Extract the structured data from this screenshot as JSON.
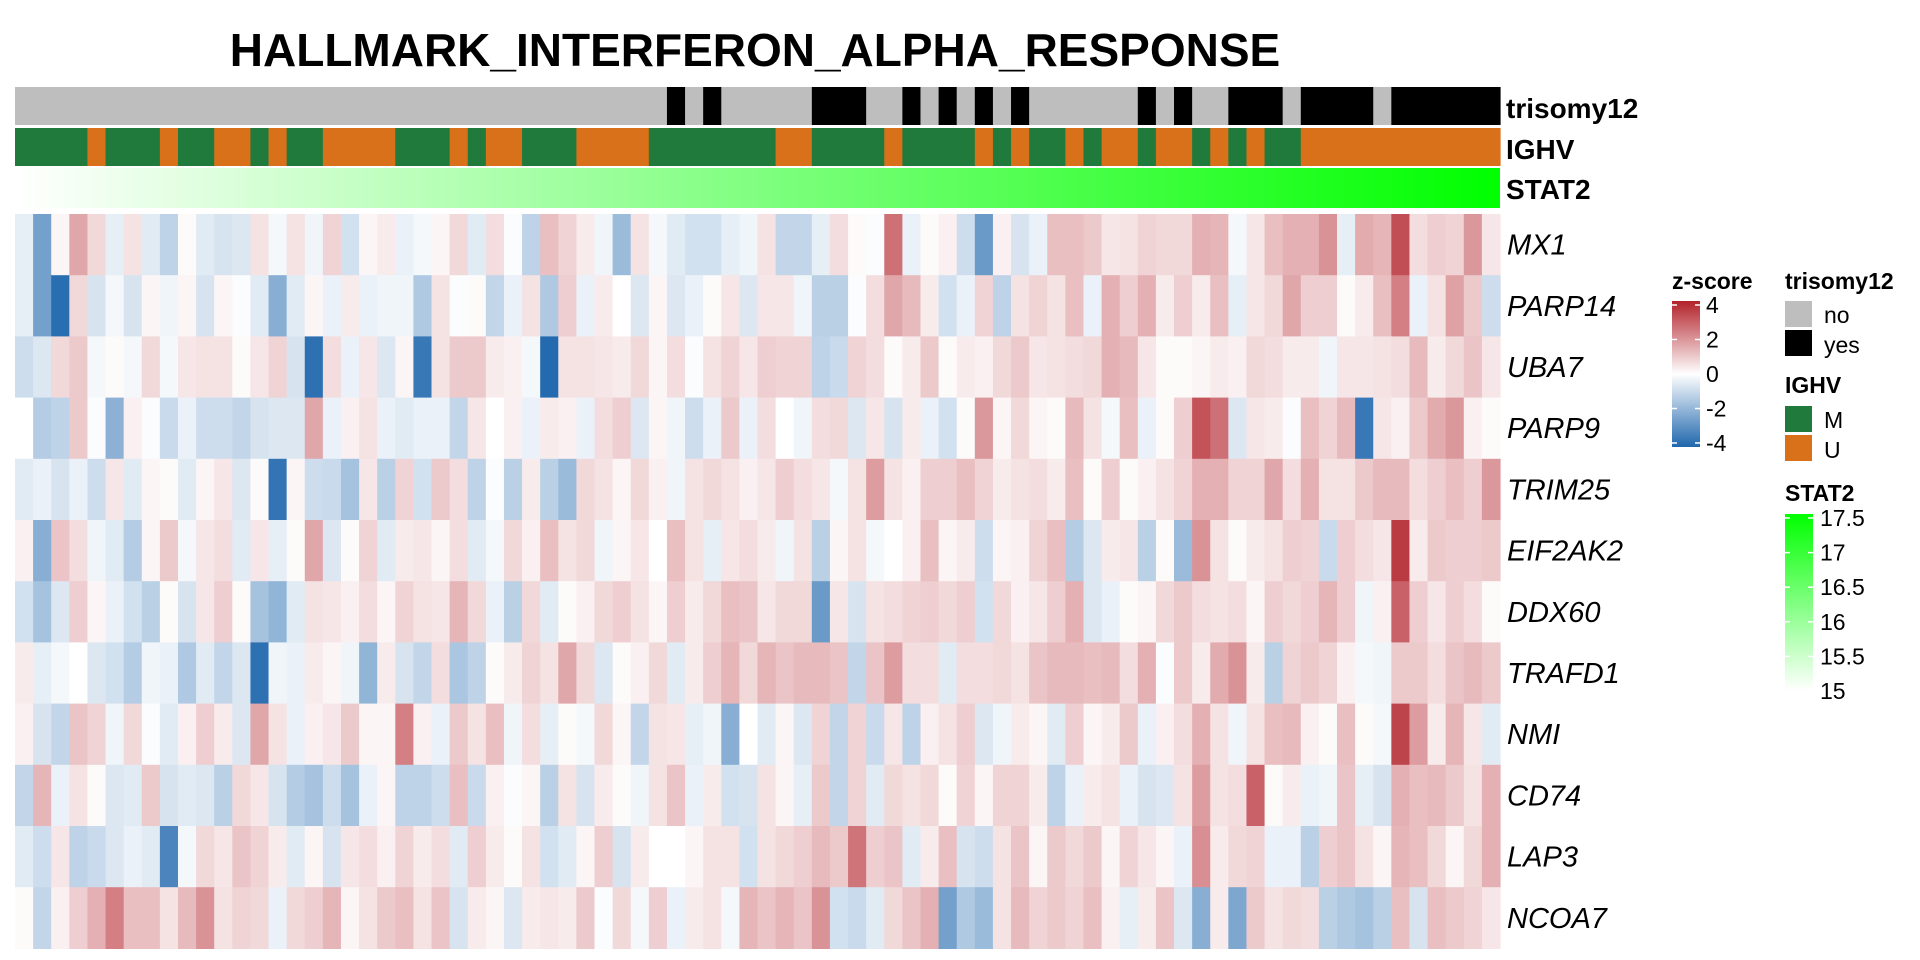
{
  "chart_data": {
    "type": "heatmap",
    "title": "HALLMARK_INTERFERON_ALPHA_RESPONSE",
    "genes": [
      "MX1",
      "PARP14",
      "UBA7",
      "PARP9",
      "TRIM25",
      "EIF2AK2",
      "DDX60",
      "TRAFD1",
      "NMI",
      "CD74",
      "LAP3",
      "NCOA7"
    ],
    "n_samples": 82,
    "annotations": {
      "trisomy12": {
        "label": "trisomy12",
        "values": [
          "no",
          "no",
          "no",
          "no",
          "no",
          "no",
          "no",
          "no",
          "no",
          "no",
          "no",
          "no",
          "no",
          "no",
          "no",
          "no",
          "no",
          "no",
          "no",
          "no",
          "no",
          "no",
          "no",
          "no",
          "no",
          "no",
          "no",
          "no",
          "no",
          "no",
          "no",
          "no",
          "no",
          "no",
          "no",
          "no",
          "yes",
          "no",
          "yes",
          "no",
          "no",
          "no",
          "no",
          "no",
          "yes",
          "yes",
          "yes",
          "no",
          "no",
          "yes",
          "no",
          "yes",
          "no",
          "yes",
          "no",
          "yes",
          "no",
          "no",
          "no",
          "no",
          "no",
          "no",
          "yes",
          "no",
          "yes",
          "no",
          "no",
          "yes",
          "yes",
          "yes",
          "no",
          "yes",
          "yes",
          "yes",
          "yes",
          "no",
          "yes",
          "yes",
          "yes",
          "yes",
          "yes",
          "yes"
        ]
      },
      "IGHV": {
        "label": "IGHV",
        "values": [
          "M",
          "M",
          "M",
          "M",
          "U",
          "M",
          "M",
          "M",
          "U",
          "M",
          "M",
          "U",
          "U",
          "M",
          "U",
          "M",
          "M",
          "U",
          "U",
          "U",
          "U",
          "M",
          "M",
          "M",
          "U",
          "M",
          "U",
          "U",
          "M",
          "M",
          "M",
          "U",
          "U",
          "U",
          "U",
          "M",
          "M",
          "M",
          "M",
          "M",
          "M",
          "M",
          "U",
          "U",
          "M",
          "M",
          "M",
          "M",
          "U",
          "M",
          "M",
          "M",
          "M",
          "U",
          "M",
          "U",
          "M",
          "M",
          "U",
          "M",
          "U",
          "U",
          "M",
          "U",
          "U",
          "M",
          "U",
          "M",
          "U",
          "M",
          "M",
          "U",
          "U",
          "U",
          "U",
          "U",
          "U",
          "U",
          "U",
          "U",
          "U",
          "U"
        ]
      },
      "STAT2": {
        "label": "STAT2",
        "range": [
          14.9,
          17.6
        ]
      }
    },
    "zscore": [
      [
        -0.5,
        -2.8,
        0.2,
        1.8,
        0.8,
        -0.5,
        0.6,
        -0.6,
        -1.3,
        0.1,
        -0.6,
        -0.8,
        -0.7,
        0.6,
        -0.2,
        0.6,
        -0.3,
        0.9,
        -0.9,
        0.2,
        0.4,
        -0.4,
        -0.2,
        0.2,
        0.8,
        -0.6,
        0.7,
        -0.1,
        -1.3,
        1.3,
        0.9,
        0.4,
        -0.3,
        -2.0,
        0.6,
        -0.2,
        -0.6,
        -0.9,
        -0.9,
        -0.5,
        -0.3,
        0.6,
        -1.2,
        -1.2,
        -0.5,
        0.7,
        0.1,
        -0.1,
        2.9,
        -0.4,
        0.1,
        0.3,
        -1.0,
        -3.0,
        0.3,
        -0.8,
        -0.4,
        1.3,
        1.3,
        1.1,
        0.5,
        0.6,
        0.9,
        0.8,
        0.8,
        1.6,
        1.5,
        -0.2,
        0.5,
        1.3,
        1.6,
        1.6,
        2.2,
        -0.5,
        1.7,
        1.5,
        3.6,
        0.7,
        1.0,
        0.9,
        2.1,
        0.5
      ],
      [
        -0.5,
        -2.8,
        -4.3,
        0.8,
        -0.8,
        -0.2,
        -0.8,
        0.2,
        -0.3,
        0.2,
        -0.8,
        0.2,
        -0.1,
        -0.6,
        -2.4,
        -0.6,
        0.2,
        -0.4,
        0.4,
        -0.4,
        -0.3,
        -0.3,
        -1.6,
        0.6,
        -0.1,
        0.1,
        -1.2,
        -0.4,
        0.6,
        -1.6,
        1.0,
        -0.4,
        0.4,
        0.0,
        -0.7,
        0.2,
        -0.7,
        -0.4,
        0.1,
        0.5,
        -0.7,
        0.5,
        0.5,
        -0.3,
        -1.4,
        -1.4,
        -0.1,
        0.7,
        1.8,
        1.4,
        0.4,
        -0.9,
        -0.4,
        0.9,
        -1.3,
        0.6,
        0.9,
        0.6,
        1.3,
        -0.4,
        1.6,
        1.0,
        1.6,
        0.4,
        1.0,
        0.4,
        1.3,
        -0.5,
        0.5,
        0.8,
        1.8,
        1.0,
        1.0,
        0.1,
        0.4,
        1.3,
        2.6,
        -0.4,
        0.6,
        1.9,
        1.1,
        -1.0
      ],
      [
        -1.0,
        -0.7,
        0.8,
        1.1,
        -0.2,
        0.1,
        -0.2,
        0.8,
        -0.2,
        0.5,
        0.6,
        0.6,
        0.1,
        0.5,
        0.9,
        -0.8,
        -4.2,
        0.7,
        -0.4,
        0.5,
        -0.7,
        0.2,
        -4.0,
        0.6,
        1.1,
        1.1,
        0.4,
        0.3,
        -0.2,
        -4.4,
        0.6,
        0.6,
        0.5,
        0.4,
        0.8,
        0.2,
        0.7,
        -0.1,
        0.6,
        0.9,
        0.5,
        1.0,
        0.9,
        0.9,
        -1.3,
        -1.1,
        0.9,
        0.7,
        0.1,
        0.4,
        1.1,
        0.1,
        0.4,
        0.3,
        0.8,
        1.1,
        0.5,
        0.6,
        0.7,
        0.8,
        1.6,
        1.4,
        0.5,
        0.1,
        0.1,
        0.2,
        0.4,
        0.3,
        0.8,
        0.7,
        0.4,
        0.4,
        -0.3,
        0.5,
        0.5,
        0.6,
        0.7,
        1.4,
        0.4,
        0.8,
        1.2,
        0.5
      ],
      [
        0.0,
        -1.5,
        -1.3,
        1.1,
        -0.1,
        -2.3,
        0.3,
        -0.1,
        -1.1,
        -0.4,
        -1.0,
        -1.0,
        -1.2,
        -0.8,
        -0.7,
        -0.7,
        1.8,
        -0.4,
        0.3,
        0.6,
        -0.4,
        -0.6,
        -0.4,
        -0.4,
        -1.2,
        0.5,
        0.0,
        0.3,
        -0.4,
        0.4,
        0.3,
        -0.4,
        0.7,
        1.0,
        -0.7,
        0.2,
        -0.3,
        -1.0,
        -0.4,
        1.1,
        -0.4,
        0.7,
        0.0,
        -0.3,
        0.7,
        0.8,
        -0.7,
        0.5,
        -0.8,
        0.4,
        -0.4,
        -0.9,
        0.1,
        2.1,
        0.2,
        0.8,
        0.2,
        0.1,
        1.4,
        0.6,
        -0.2,
        1.3,
        -0.4,
        0.1,
        1.0,
        3.5,
        2.9,
        -0.7,
        0.5,
        0.4,
        -0.1,
        1.3,
        0.9,
        1.4,
        -4.0,
        0.5,
        0.3,
        1.1,
        1.7,
        2.1,
        0.3,
        0.1
      ],
      [
        -0.6,
        -0.4,
        -0.8,
        -0.4,
        -1.0,
        0.5,
        -0.6,
        0.2,
        0.1,
        -0.6,
        0.2,
        0.5,
        -0.7,
        0.1,
        -4.1,
        0.2,
        -1.0,
        -1.1,
        -1.8,
        0.5,
        -1.4,
        0.9,
        -0.9,
        1.1,
        0.7,
        -1.3,
        -0.1,
        -1.4,
        0.4,
        -1.4,
        -2.0,
        0.8,
        0.6,
        0.2,
        0.8,
        0.3,
        -0.3,
        0.6,
        0.8,
        0.6,
        0.3,
        0.5,
        1.0,
        0.7,
        0.5,
        -0.2,
        0.6,
        2.0,
        0.6,
        0.3,
        1.0,
        1.0,
        1.3,
        0.9,
        0.4,
        0.6,
        0.7,
        0.4,
        1.3,
        0.1,
        1.0,
        0.1,
        0.3,
        0.6,
        0.9,
        1.6,
        1.6,
        0.9,
        0.9,
        1.8,
        0.7,
        1.6,
        0.6,
        0.6,
        1.1,
        1.4,
        1.4,
        0.7,
        1.0,
        1.3,
        1.0,
        2.1
      ],
      [
        0.3,
        -2.4,
        1.2,
        0.7,
        -0.3,
        -0.6,
        -1.5,
        0.2,
        1.1,
        -0.2,
        0.5,
        0.7,
        -0.6,
        0.5,
        -0.5,
        0.1,
        1.8,
        -0.7,
        0.1,
        0.9,
        -0.6,
        0.4,
        0.5,
        0.2,
        0.7,
        -0.6,
        -0.2,
        0.8,
        0.3,
        1.3,
        0.6,
        0.8,
        -0.3,
        0.2,
        0.5,
        0.0,
        1.3,
        0.6,
        -0.5,
        0.5,
        0.7,
        0.4,
        -0.3,
        0.6,
        -1.4,
        0.2,
        0.6,
        -0.2,
        0.0,
        0.3,
        1.3,
        0.2,
        0.4,
        -1.0,
        0.2,
        0.3,
        0.9,
        1.3,
        -1.5,
        -0.7,
        0.4,
        0.5,
        -1.4,
        0.1,
        -2.0,
        2.2,
        0.6,
        0.1,
        0.4,
        0.6,
        1.0,
        0.9,
        -1.1,
        1.0,
        0.7,
        0.5,
        4.0,
        0.4,
        1.1,
        1.0,
        1.0,
        1.1
      ],
      [
        -0.9,
        -1.8,
        -0.7,
        1.0,
        0.2,
        -0.4,
        -0.9,
        -1.4,
        0.1,
        -0.8,
        0.5,
        1.0,
        0.1,
        -1.8,
        -2.2,
        -0.6,
        0.6,
        0.5,
        0.3,
        0.7,
        0.2,
        0.9,
        0.6,
        0.5,
        1.5,
        0.8,
        -0.4,
        -1.4,
        0.8,
        -0.6,
        0.1,
        0.3,
        0.8,
        1.0,
        0.6,
        0.2,
        1.0,
        0.4,
        0.8,
        1.3,
        1.2,
        0.5,
        0.8,
        0.8,
        -3.0,
        0.5,
        -0.8,
        0.6,
        0.7,
        0.9,
        1.0,
        0.8,
        1.0,
        -0.9,
        0.8,
        0.3,
        0.5,
        1.0,
        1.6,
        -0.7,
        -0.4,
        0.1,
        0.2,
        0.8,
        1.1,
        0.7,
        0.6,
        0.7,
        0.2,
        1.0,
        0.8,
        1.0,
        1.5,
        1.0,
        -0.3,
        0.3,
        3.2,
        1.0,
        0.5,
        1.0,
        0.7,
        0.1
      ],
      [
        0.4,
        -0.5,
        -0.2,
        0.0,
        -0.7,
        -0.9,
        -1.5,
        -0.3,
        -0.4,
        -1.6,
        -0.6,
        -1.2,
        -0.7,
        -4.2,
        -0.3,
        -0.4,
        0.4,
        0.2,
        -0.3,
        -2.2,
        0.4,
        -0.8,
        -1.2,
        0.7,
        -1.7,
        -1.3,
        0.1,
        0.4,
        0.9,
        0.6,
        1.8,
        0.8,
        -0.7,
        0.1,
        0.3,
        0.8,
        -0.6,
        0.4,
        1.0,
        1.5,
        0.8,
        1.5,
        1.2,
        1.4,
        1.4,
        1.2,
        -1.2,
        1.2,
        2.0,
        0.7,
        0.7,
        -0.6,
        0.7,
        0.7,
        0.8,
        0.6,
        1.2,
        1.4,
        1.4,
        1.3,
        1.4,
        0.7,
        1.6,
        -0.1,
        1.1,
        0.4,
        1.7,
        2.2,
        0.4,
        -1.4,
        0.9,
        1.1,
        0.9,
        0.3,
        -0.2,
        -0.3,
        1.1,
        1.1,
        0.7,
        1.2,
        1.4,
        1.1
      ],
      [
        0.3,
        -0.8,
        -1.2,
        1.2,
        0.9,
        -0.3,
        0.8,
        -0.1,
        -0.6,
        0.3,
        1.0,
        0.4,
        -0.7,
        1.8,
        0.6,
        -0.4,
        0.3,
        0.5,
        1.1,
        0.2,
        0.2,
        2.6,
        0.3,
        -0.4,
        1.1,
        0.6,
        1.3,
        -0.3,
        0.7,
        -0.5,
        0.1,
        -0.2,
        0.8,
        0.2,
        -1.2,
        0.6,
        0.5,
        -0.5,
        -0.3,
        -2.4,
        0.0,
        -0.6,
        0.2,
        -0.7,
        0.9,
        -1.2,
        0.9,
        -1.1,
        0.5,
        -1.3,
        0.3,
        0.6,
        1.0,
        -0.7,
        -0.3,
        0.4,
        0.2,
        -0.6,
        1.0,
        0.2,
        0.4,
        1.1,
        -0.4,
        0.3,
        0.7,
        1.6,
        0.6,
        -0.3,
        0.6,
        1.3,
        1.4,
        0.3,
        0.1,
        1.3,
        0.1,
        -0.2,
        3.8,
        2.0,
        0.4,
        1.5,
        0.5,
        -0.6
      ],
      [
        -1.2,
        1.5,
        -0.4,
        0.6,
        0.1,
        -0.7,
        -0.6,
        1.1,
        -0.8,
        -0.6,
        -0.7,
        -1.4,
        0.8,
        0.5,
        -0.8,
        -1.5,
        -1.8,
        -1.0,
        -1.8,
        -0.4,
        0.2,
        -1.3,
        -1.3,
        -1.0,
        1.3,
        -1.1,
        0.3,
        -0.1,
        0.2,
        -1.4,
        0.6,
        -0.8,
        0.4,
        0.1,
        -0.3,
        0.6,
        1.2,
        -0.4,
        0.4,
        -0.9,
        -0.8,
        0.6,
        0.2,
        -0.5,
        1.1,
        -1.2,
        0.9,
        -0.6,
        0.8,
        0.6,
        0.8,
        0.1,
        0.9,
        0.2,
        0.9,
        0.9,
        0.4,
        -1.3,
        -0.4,
        0.4,
        0.6,
        -0.4,
        -0.8,
        -0.7,
        0.6,
        2.0,
        0.6,
        0.7,
        3.2,
        0.1,
        0.4,
        -0.4,
        -0.3,
        1.2,
        -0.5,
        -0.8,
        1.6,
        1.3,
        1.4,
        1.1,
        0.6,
        1.6
      ],
      [
        -0.6,
        -1.0,
        0.5,
        -1.3,
        -1.1,
        -0.7,
        -0.4,
        -0.6,
        -3.6,
        -0.2,
        0.8,
        0.5,
        1.2,
        0.9,
        0.4,
        -0.6,
        0.2,
        -0.8,
        0.5,
        0.7,
        0.3,
        0.9,
        0.4,
        0.7,
        -0.6,
        1.0,
        0.4,
        0.1,
        0.6,
        -0.9,
        -0.6,
        0.2,
        1.0,
        -0.8,
        0.4,
        0.0,
        0.0,
        0.2,
        0.6,
        0.6,
        -0.9,
        0.6,
        0.8,
        1.0,
        1.4,
        1.1,
        2.8,
        1.0,
        1.2,
        -0.6,
        0.4,
        1.3,
        -0.8,
        -1.0,
        0.6,
        1.2,
        0.2,
        1.1,
        0.8,
        1.1,
        0.2,
        0.9,
        0.5,
        0.2,
        -0.4,
        2.3,
        0.4,
        0.8,
        0.9,
        -0.4,
        -0.4,
        -1.4,
        1.0,
        1.2,
        0.6,
        0.2,
        1.5,
        1.3,
        0.8,
        0.2,
        0.8,
        1.6
      ],
      [
        0.1,
        -1.2,
        0.3,
        1.0,
        1.6,
        2.6,
        1.3,
        1.3,
        0.6,
        1.4,
        2.2,
        0.6,
        0.9,
        0.8,
        -0.4,
        0.8,
        1.0,
        1.5,
        0.2,
        0.6,
        1.1,
        1.3,
        0.6,
        1.2,
        -0.8,
        0.4,
        0.2,
        -0.7,
        0.4,
        0.5,
        0.4,
        1.1,
        -0.1,
        0.8,
        -0.2,
        1.0,
        -0.4,
        0.4,
        0.6,
        -0.2,
        1.5,
        1.2,
        1.5,
        1.2,
        2.2,
        -0.9,
        -1.1,
        -0.6,
        0.8,
        1.2,
        1.6,
        -2.8,
        -1.6,
        -2.0,
        0.6,
        1.4,
        0.9,
        1.1,
        0.9,
        1.3,
        0.3,
        -0.5,
        0.4,
        1.2,
        -0.7,
        -2.4,
        0.4,
        -2.6,
        1.1,
        0.6,
        0.8,
        0.7,
        -1.4,
        -1.6,
        -1.8,
        -1.4,
        1.3,
        -0.8,
        1.3,
        1.1,
        0.9,
        0.5
      ]
    ],
    "legend": {
      "zscore": {
        "title": "z-score",
        "ticks": [
          "4",
          "2",
          "0",
          "-2",
          "-4"
        ]
      },
      "trisomy12": {
        "title": "trisomy12",
        "items": [
          "no",
          "yes"
        ]
      },
      "IGHV": {
        "title": "IGHV",
        "items": [
          "M",
          "U"
        ]
      },
      "STAT2": {
        "title": "STAT2",
        "ticks": [
          "17.5",
          "17",
          "16.5",
          "16",
          "15.5",
          "15"
        ]
      }
    }
  },
  "colors": {
    "trisomy_no": "#bebebe",
    "trisomy_yes": "#000000",
    "ighv_M": "#1f7a3c",
    "ighv_U": "#d9711a",
    "stat2_low": "#ffffff",
    "stat2_high": "#00ff00",
    "z_low": "#1f67ad",
    "z_mid": "#ffffff",
    "z_high": "#b2222a"
  }
}
